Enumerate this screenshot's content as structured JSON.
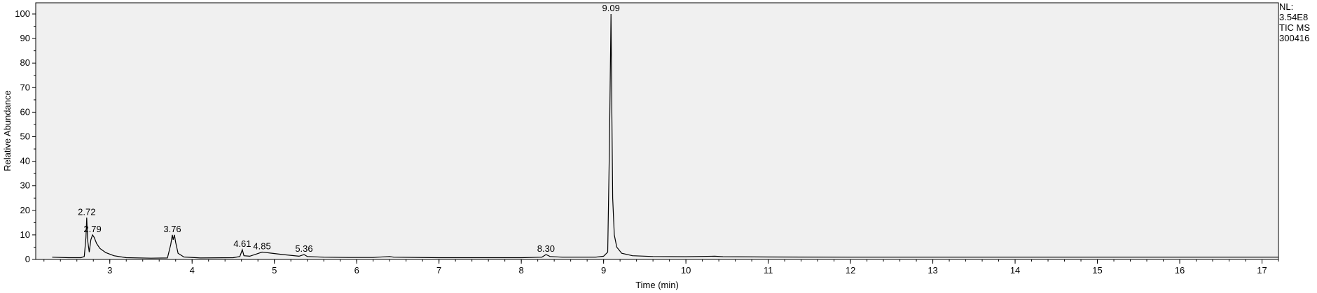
{
  "info_panel": {
    "nl_label": "NL:",
    "nl_value": "3.54E8",
    "trace": "TIC  MS",
    "sample": "300416"
  },
  "chart_data": {
    "type": "line",
    "xlabel": "Time (min)",
    "ylabel": "Relative Abundance",
    "xlim": [
      2.1,
      17.2
    ],
    "ylim": [
      0,
      100
    ],
    "x_ticks": [
      3,
      4,
      5,
      6,
      7,
      8,
      9,
      10,
      11,
      12,
      13,
      14,
      15,
      16,
      17
    ],
    "y_ticks": [
      0,
      10,
      20,
      30,
      40,
      50,
      60,
      70,
      80,
      90,
      100
    ],
    "grid": false,
    "baseline_start": 2.3,
    "peaks": [
      {
        "label": "2.72",
        "x": 2.72,
        "y": 17
      },
      {
        "label": "2.79",
        "x": 2.79,
        "y": 10
      },
      {
        "label": "3.76",
        "x": 3.76,
        "y": 10
      },
      {
        "label": "4.61",
        "x": 4.61,
        "y": 4
      },
      {
        "label": "4.85",
        "x": 4.85,
        "y": 3
      },
      {
        "label": "5.36",
        "x": 5.36,
        "y": 2
      },
      {
        "label": "8.30",
        "x": 8.3,
        "y": 2
      },
      {
        "label": "9.09",
        "x": 9.09,
        "y": 100
      }
    ],
    "series": [
      {
        "points": [
          [
            2.3,
            0.9
          ],
          [
            2.5,
            0.7
          ],
          [
            2.65,
            0.7
          ],
          [
            2.69,
            1.2
          ],
          [
            2.71,
            9
          ],
          [
            2.72,
            17
          ],
          [
            2.73,
            8
          ],
          [
            2.75,
            3
          ],
          [
            2.77,
            8
          ],
          [
            2.79,
            10
          ],
          [
            2.81,
            9
          ],
          [
            2.84,
            6.5
          ],
          [
            2.88,
            4.5
          ],
          [
            2.95,
            2.8
          ],
          [
            3.05,
            1.5
          ],
          [
            3.2,
            0.7
          ],
          [
            3.5,
            0.5
          ],
          [
            3.7,
            0.6
          ],
          [
            3.74,
            6
          ],
          [
            3.76,
            10
          ],
          [
            3.77,
            8
          ],
          [
            3.785,
            10
          ],
          [
            3.8,
            7
          ],
          [
            3.83,
            2.5
          ],
          [
            3.9,
            1.0
          ],
          [
            4.1,
            0.6
          ],
          [
            4.5,
            0.7
          ],
          [
            4.58,
            1.2
          ],
          [
            4.61,
            4
          ],
          [
            4.63,
            1.5
          ],
          [
            4.7,
            1.3
          ],
          [
            4.78,
            2.2
          ],
          [
            4.85,
            3
          ],
          [
            4.95,
            2.6
          ],
          [
            5.1,
            2.0
          ],
          [
            5.3,
            1.3
          ],
          [
            5.36,
            2
          ],
          [
            5.4,
            1.2
          ],
          [
            5.6,
            0.9
          ],
          [
            5.9,
            0.8
          ],
          [
            6.2,
            0.8
          ],
          [
            6.4,
            1.2
          ],
          [
            6.45,
            0.9
          ],
          [
            7.0,
            0.7
          ],
          [
            8.0,
            0.7
          ],
          [
            8.25,
            0.9
          ],
          [
            8.3,
            2
          ],
          [
            8.35,
            1.2
          ],
          [
            8.5,
            0.9
          ],
          [
            8.9,
            0.9
          ],
          [
            9.0,
            1.3
          ],
          [
            9.05,
            3
          ],
          [
            9.07,
            45
          ],
          [
            9.09,
            100
          ],
          [
            9.1,
            60
          ],
          [
            9.11,
            25
          ],
          [
            9.13,
            10
          ],
          [
            9.16,
            5
          ],
          [
            9.22,
            2.5
          ],
          [
            9.35,
            1.5
          ],
          [
            9.6,
            1.2
          ],
          [
            10.0,
            1.1
          ],
          [
            10.35,
            1.3
          ],
          [
            10.45,
            1.1
          ],
          [
            11.0,
            1.0
          ],
          [
            12.0,
            0.9
          ],
          [
            13.0,
            0.9
          ],
          [
            14.0,
            0.9
          ],
          [
            15.0,
            0.9
          ],
          [
            16.0,
            0.9
          ],
          [
            17.2,
            0.9
          ]
        ]
      }
    ]
  }
}
